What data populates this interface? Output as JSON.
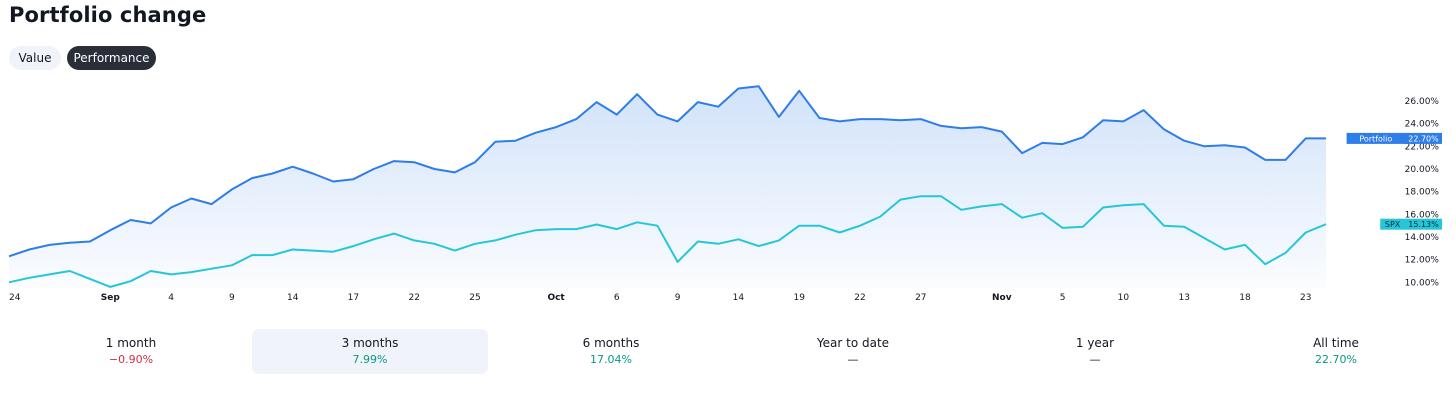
{
  "header": {
    "title": "Portfolio change"
  },
  "toggles": {
    "value_label": "Value",
    "performance_label": "Performance"
  },
  "chart_data": {
    "type": "line",
    "yticks": [
      "10.00%",
      "12.00%",
      "14.00%",
      "16.00%",
      "18.00%",
      "20.00%",
      "22.00%",
      "24.00%",
      "26.00%"
    ],
    "ylim": [
      9.5,
      27.5
    ],
    "xticks": [
      {
        "label": "24",
        "i": 0,
        "bold": false
      },
      {
        "label": "Sep",
        "i": 5,
        "bold": true
      },
      {
        "label": "4",
        "i": 8,
        "bold": false
      },
      {
        "label": "9",
        "i": 11,
        "bold": false
      },
      {
        "label": "14",
        "i": 14,
        "bold": false
      },
      {
        "label": "17",
        "i": 17,
        "bold": false
      },
      {
        "label": "22",
        "i": 20,
        "bold": false
      },
      {
        "label": "25",
        "i": 23,
        "bold": false
      },
      {
        "label": "Oct",
        "i": 27,
        "bold": true
      },
      {
        "label": "6",
        "i": 30,
        "bold": false
      },
      {
        "label": "9",
        "i": 33,
        "bold": false
      },
      {
        "label": "14",
        "i": 36,
        "bold": false
      },
      {
        "label": "19",
        "i": 39,
        "bold": false
      },
      {
        "label": "22",
        "i": 42,
        "bold": false
      },
      {
        "label": "27",
        "i": 45,
        "bold": false
      },
      {
        "label": "Nov",
        "i": 49,
        "bold": true
      },
      {
        "label": "5",
        "i": 52,
        "bold": false
      },
      {
        "label": "10",
        "i": 55,
        "bold": false
      },
      {
        "label": "13",
        "i": 58,
        "bold": false
      },
      {
        "label": "18",
        "i": 61,
        "bold": false
      },
      {
        "label": "23",
        "i": 64,
        "bold": false
      }
    ],
    "series": [
      {
        "name": "Portfolio",
        "color": "#2e7de8",
        "badge_value": "22.70%",
        "values": [
          12.3,
          12.9,
          13.3,
          13.5,
          13.6,
          14.6,
          15.5,
          15.2,
          16.6,
          17.4,
          16.9,
          18.2,
          19.2,
          19.6,
          20.2,
          19.6,
          18.9,
          19.1,
          20.0,
          20.7,
          20.6,
          20.0,
          19.7,
          20.6,
          22.4,
          22.5,
          23.2,
          23.7,
          24.4,
          25.9,
          24.8,
          26.6,
          24.8,
          24.2,
          25.9,
          25.5,
          27.1,
          27.3,
          24.6,
          26.9,
          24.5,
          24.2,
          24.4,
          24.4,
          24.3,
          24.4,
          23.8,
          23.6,
          23.7,
          23.3,
          21.4,
          22.3,
          22.2,
          22.8,
          24.3,
          24.2,
          25.2,
          23.5,
          22.5,
          22.0,
          22.1,
          21.9,
          20.8,
          20.8,
          22.7,
          22.7
        ]
      },
      {
        "name": "SPX",
        "color": "#26c6da",
        "badge_value": "15.13%",
        "values": [
          10.0,
          10.4,
          10.7,
          11.0,
          10.3,
          9.6,
          10.1,
          11.0,
          10.7,
          10.9,
          11.2,
          11.5,
          12.4,
          12.4,
          12.9,
          12.8,
          12.7,
          13.2,
          13.8,
          14.3,
          13.7,
          13.4,
          12.8,
          13.4,
          13.7,
          14.2,
          14.6,
          14.7,
          14.7,
          15.1,
          14.7,
          15.3,
          15.0,
          11.8,
          13.6,
          13.4,
          13.8,
          13.2,
          13.7,
          15.0,
          15.0,
          14.4,
          15.0,
          15.8,
          17.3,
          17.6,
          17.6,
          16.4,
          16.7,
          16.9,
          15.7,
          16.1,
          14.8,
          14.9,
          16.6,
          16.8,
          16.9,
          15.0,
          14.9,
          13.9,
          12.9,
          13.3,
          11.6,
          12.6,
          14.4,
          15.13
        ]
      }
    ]
  },
  "periods": [
    {
      "label": "1 month",
      "value": "−0.90%",
      "tone": "neg"
    },
    {
      "label": "3 months",
      "value": "7.99%",
      "tone": "pos"
    },
    {
      "label": "6 months",
      "value": "17.04%",
      "tone": "pos"
    },
    {
      "label": "Year to date",
      "value": "—",
      "tone": "neutral"
    },
    {
      "label": "1 year",
      "value": "—",
      "tone": "neutral"
    },
    {
      "label": "All time",
      "value": "22.70%",
      "tone": "pos"
    }
  ]
}
